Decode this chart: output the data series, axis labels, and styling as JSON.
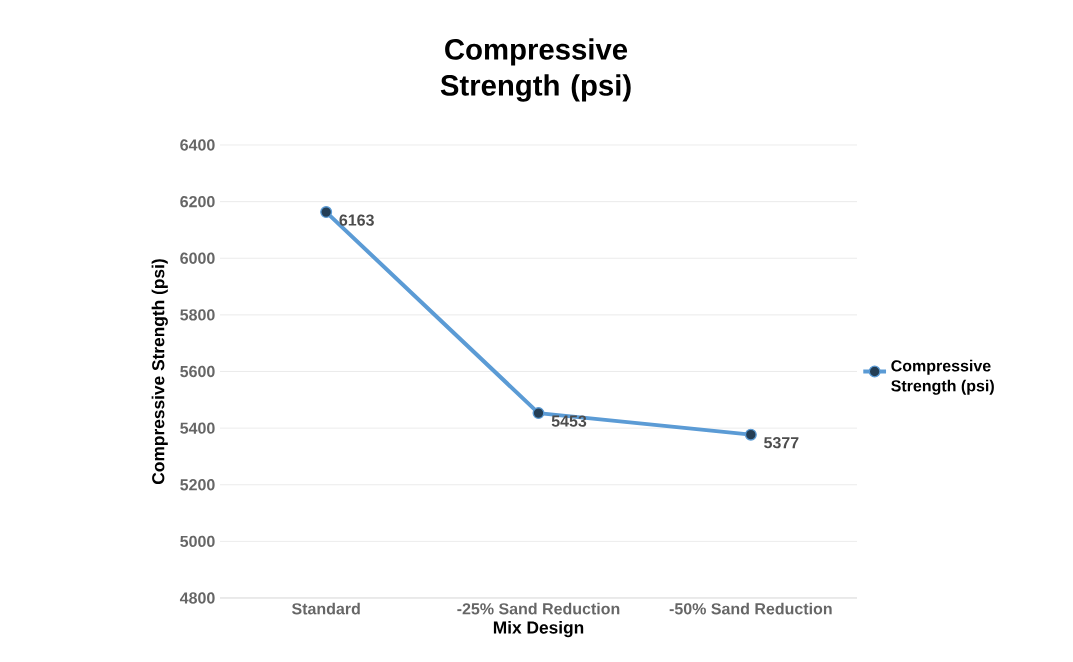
{
  "chart_data": {
    "type": "line",
    "title": "Compressive Strength (psi)",
    "xlabel": "Mix Design",
    "ylabel": "Compressive Strength (psi)",
    "categories": [
      "Standard",
      "-25% Sand Reduction",
      "-50% Sand Reduction"
    ],
    "series": [
      {
        "name": "Compressive Strength (psi)",
        "color": "#5b9bd5",
        "values": [
          6163,
          5453,
          5377
        ]
      }
    ],
    "ylim": [
      4800,
      6400
    ],
    "yticks": [
      4800,
      5000,
      5200,
      5400,
      5600,
      5800,
      6000,
      6200,
      6400
    ],
    "grid": "y",
    "legend": "right",
    "marker": "circle",
    "line_style": "solid",
    "data_labels": true
  }
}
